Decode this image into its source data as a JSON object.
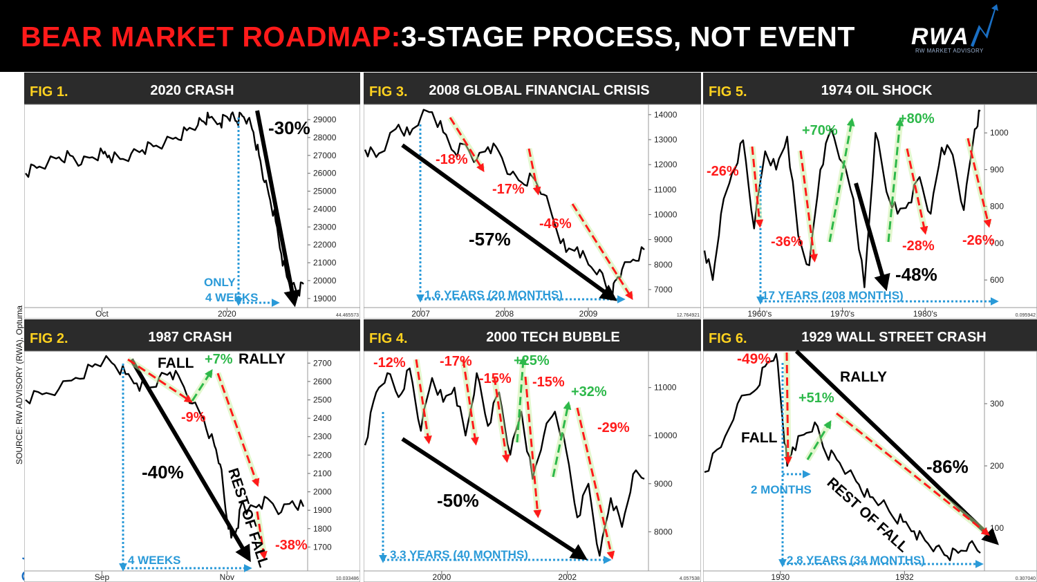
{
  "header": {
    "title_red": "BEAR MARKET ROADMAP:",
    "title_white": "3-STAGE PROCESS, NOT EVENT",
    "logo_text": "RWA",
    "logo_sub": "RW MARKET ADVISORY"
  },
  "source_note": "SOURCE: RW ADVISORY (RWA), Optuma",
  "optuma_logo": "Optuma",
  "colors": {
    "header_bg": "#000000",
    "title_red": "#ff1a1a",
    "fig_label": "#ffd21f",
    "panel_title_bg": "#2b2b2b",
    "decline": "#ff1a1a",
    "rally": "#2db84a",
    "duration": "#2a9ad8",
    "price": "#000000"
  },
  "chart_data": [
    {
      "type": "line",
      "fig_label": "FIG 1.",
      "title": "2020 CRASH",
      "x_ticks": [
        "Oct",
        "2020"
      ],
      "y_ticks": [
        19000,
        20000,
        21000,
        22000,
        23000,
        24000,
        25000,
        26000,
        27000,
        28000,
        29000
      ],
      "ylim": [
        18800,
        29700
      ],
      "scale_readout": "44.465573",
      "series": [
        {
          "x": [
            0,
            4,
            8,
            12,
            16,
            20,
            24,
            28,
            30,
            34,
            38,
            42,
            46,
            50,
            54,
            58,
            62,
            64,
            66,
            70,
            72,
            74,
            76,
            78,
            80,
            82,
            84,
            86,
            88,
            90,
            92,
            94,
            96,
            98,
            100
          ],
          "values": [
            26000,
            26300,
            26600,
            26900,
            27000,
            26500,
            26900,
            27100,
            27000,
            26800,
            27100,
            27300,
            27500,
            27700,
            28000,
            28400,
            28700,
            28900,
            29100,
            28800,
            29200,
            29300,
            28900,
            29200,
            29000,
            28300,
            27000,
            25500,
            24500,
            23300,
            21500,
            20200,
            19800,
            19300,
            19800
          ]
        }
      ],
      "annotations": [
        {
          "text": "-30%",
          "kind": "decline_total"
        },
        {
          "text": "ONLY",
          "kind": "duration"
        },
        {
          "text": "4 WEEKS",
          "kind": "duration"
        }
      ]
    },
    {
      "type": "line",
      "fig_label": "FIG 2.",
      "title": "1987 CRASH",
      "x_ticks": [
        "Sep",
        "Nov"
      ],
      "y_ticks": [
        1700,
        1800,
        1900,
        2000,
        2100,
        2200,
        2300,
        2400,
        2500,
        2600,
        2700
      ],
      "ylim": [
        1600,
        2750
      ],
      "scale_readout": "10.033486",
      "series": [
        {
          "x": [
            0,
            6,
            12,
            18,
            24,
            28,
            32,
            36,
            40,
            44,
            48,
            52,
            56,
            60,
            64,
            68,
            70,
            72,
            74,
            76,
            78,
            80,
            84,
            88,
            92,
            96,
            100
          ],
          "values": [
            2500,
            2530,
            2560,
            2620,
            2680,
            2710,
            2690,
            2640,
            2590,
            2560,
            2620,
            2650,
            2600,
            2480,
            2400,
            2250,
            2150,
            1900,
            1750,
            1800,
            1950,
            1900,
            1930,
            1950,
            1890,
            1950,
            1920
          ]
        }
      ],
      "annotations": [
        {
          "text": "FALL",
          "kind": "label"
        },
        {
          "text": "+7%",
          "kind": "rally"
        },
        {
          "text": "RALLY",
          "kind": "label"
        },
        {
          "text": "-9%",
          "kind": "decline"
        },
        {
          "text": "REST OF FALL",
          "kind": "label"
        },
        {
          "text": "-40%",
          "kind": "decline_total"
        },
        {
          "text": "-38%",
          "kind": "decline"
        },
        {
          "text": "4 WEEKS",
          "kind": "duration"
        }
      ]
    },
    {
      "type": "line",
      "fig_label": "FIG 3.",
      "title": "2008 GLOBAL FINANCIAL CRISIS",
      "x_ticks": [
        "2007",
        "2008",
        "2009"
      ],
      "y_ticks": [
        7000,
        8000,
        9000,
        10000,
        11000,
        12000,
        13000,
        14000
      ],
      "ylim": [
        6500,
        14300
      ],
      "scale_readout": "12.764921",
      "series": [
        {
          "x": [
            0,
            4,
            8,
            12,
            16,
            20,
            24,
            28,
            32,
            36,
            40,
            44,
            48,
            52,
            56,
            60,
            64,
            68,
            72,
            76,
            80,
            84,
            88,
            90,
            92,
            96,
            100
          ],
          "values": [
            12600,
            12300,
            12900,
            13600,
            13200,
            13900,
            14100,
            13300,
            12500,
            12800,
            12200,
            12700,
            12500,
            11600,
            11300,
            11500,
            10800,
            9600,
            8500,
            8700,
            8000,
            7800,
            6600,
            7400,
            7800,
            8200,
            8600
          ]
        }
      ],
      "annotations": [
        {
          "text": "-18%",
          "kind": "decline"
        },
        {
          "text": "-17%",
          "kind": "decline"
        },
        {
          "text": "-46%",
          "kind": "decline"
        },
        {
          "text": "-57%",
          "kind": "decline_total"
        },
        {
          "text": "1.6 YEARS (20 MONTHS)",
          "kind": "duration"
        }
      ]
    },
    {
      "type": "line",
      "fig_label": "FIG 4.",
      "title": "2000 TECH BUBBLE",
      "x_ticks": [
        "2000",
        "2002"
      ],
      "y_ticks": [
        8000,
        9000,
        10000,
        11000
      ],
      "ylim": [
        7300,
        11700
      ],
      "scale_readout": "4.057538",
      "series": [
        {
          "x": [
            0,
            4,
            8,
            12,
            16,
            20,
            24,
            28,
            32,
            36,
            40,
            44,
            48,
            52,
            56,
            60,
            64,
            68,
            72,
            76,
            80,
            84,
            88,
            92,
            96,
            100
          ],
          "values": [
            9800,
            10900,
            11300,
            10800,
            11400,
            10100,
            11200,
            10700,
            11000,
            10000,
            11300,
            10200,
            10900,
            9600,
            10500,
            9100,
            10000,
            10500,
            9700,
            8300,
            9000,
            7500,
            8700,
            8100,
            9200,
            9100
          ]
        }
      ],
      "annotations": [
        {
          "text": "-12%",
          "kind": "decline"
        },
        {
          "text": "-17%",
          "kind": "decline"
        },
        {
          "text": "-15%",
          "kind": "decline"
        },
        {
          "text": "+25%",
          "kind": "rally"
        },
        {
          "text": "-15%",
          "kind": "decline"
        },
        {
          "text": "+32%",
          "kind": "rally"
        },
        {
          "text": "-29%",
          "kind": "decline"
        },
        {
          "text": "-50%",
          "kind": "decline_total"
        },
        {
          "text": "3.3 YEARS (40 MONTHS)",
          "kind": "duration"
        }
      ]
    },
    {
      "type": "line",
      "fig_label": "FIG 5.",
      "title": "1974 OIL SHOCK",
      "x_ticks": [
        "1960's",
        "1970's",
        "1980's"
      ],
      "y_ticks": [
        600,
        700,
        800,
        900,
        1000
      ],
      "ylim": [
        540,
        1070
      ],
      "scale_readout": "0.095942",
      "series": [
        {
          "x": [
            0,
            3,
            6,
            10,
            14,
            18,
            22,
            26,
            30,
            34,
            38,
            42,
            46,
            50,
            54,
            58,
            62,
            66,
            70,
            74,
            78,
            82,
            86,
            90,
            94,
            98,
            100
          ],
          "values": [
            680,
            600,
            780,
            890,
            980,
            740,
            950,
            900,
            990,
            720,
            640,
            900,
            1010,
            920,
            820,
            580,
            1000,
            840,
            780,
            810,
            880,
            780,
            960,
            940,
            790,
            1010,
            1060
          ]
        }
      ],
      "annotations": [
        {
          "text": "-26%",
          "kind": "decline"
        },
        {
          "text": "-36%",
          "kind": "decline"
        },
        {
          "text": "+70%",
          "kind": "rally"
        },
        {
          "text": "+80%",
          "kind": "rally"
        },
        {
          "text": "-48%",
          "kind": "decline_total"
        },
        {
          "text": "-28%",
          "kind": "decline"
        },
        {
          "text": "-26%",
          "kind": "decline"
        },
        {
          "text": "17 YEARS (208 MONTHS)",
          "kind": "duration"
        }
      ]
    },
    {
      "type": "line",
      "fig_label": "FIG 6.",
      "title": "1929 WALL STREET CRASH",
      "x_ticks": [
        "1930",
        "1932"
      ],
      "y_ticks": [
        100,
        200,
        300
      ],
      "ylim": [
        40,
        380
      ],
      "scale_readout": "0.307040",
      "series": [
        {
          "x": [
            0,
            6,
            12,
            18,
            22,
            26,
            28,
            30,
            32,
            36,
            40,
            44,
            48,
            52,
            56,
            60,
            64,
            68,
            72,
            76,
            80,
            84,
            88,
            92,
            96,
            100
          ],
          "values": [
            190,
            230,
            300,
            320,
            360,
            380,
            290,
            200,
            230,
            250,
            270,
            220,
            210,
            190,
            170,
            150,
            140,
            120,
            110,
            95,
            80,
            70,
            55,
            60,
            75,
            60
          ]
        }
      ],
      "annotations": [
        {
          "text": "-49%",
          "kind": "decline"
        },
        {
          "text": "RALLY",
          "kind": "label"
        },
        {
          "text": "+51%",
          "kind": "rally"
        },
        {
          "text": "FALL",
          "kind": "label"
        },
        {
          "text": "-86%",
          "kind": "decline_total"
        },
        {
          "text": "2 MONTHS",
          "kind": "duration"
        },
        {
          "text": "REST OF FALL",
          "kind": "label"
        },
        {
          "text": "2.8 YEARS (34 MONTHS)",
          "kind": "duration"
        }
      ]
    }
  ]
}
